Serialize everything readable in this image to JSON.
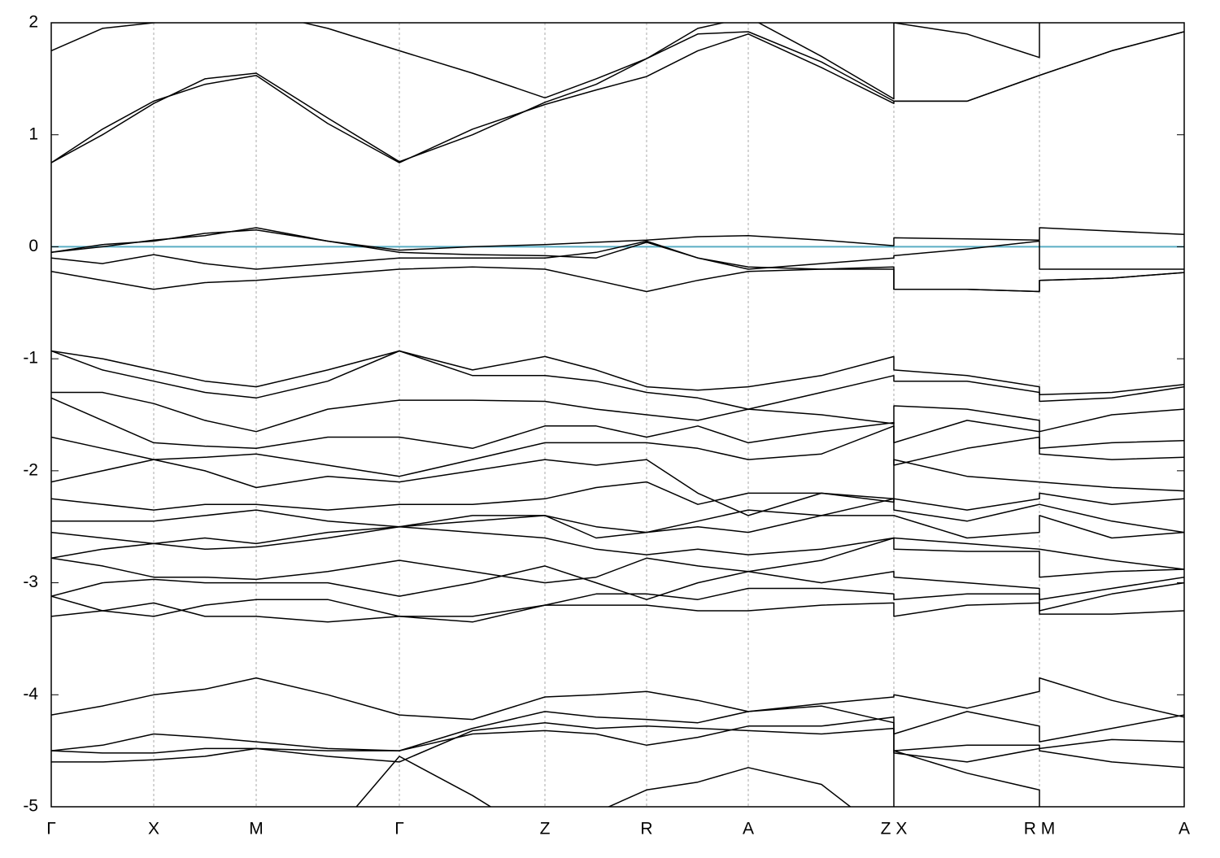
{
  "chart_data": {
    "type": "line",
    "x": [
      0,
      0.63,
      1.26,
      1.89,
      2.52,
      3.4,
      4.28,
      5.18,
      6.07,
      6.7,
      7.32,
      7.95,
      8.57,
      9.47,
      10.36,
      10.36,
      11.26,
      12.15,
      12.15,
      13.04,
      13.93
    ],
    "xlim": [
      0,
      13.93
    ],
    "xticks": [
      {
        "value": 0,
        "label": "Γ"
      },
      {
        "value": 1.26,
        "label": "X"
      },
      {
        "value": 2.52,
        "label": "M"
      },
      {
        "value": 4.28,
        "label": "Γ"
      },
      {
        "value": 6.07,
        "label": "Z"
      },
      {
        "value": 7.32,
        "label": "R"
      },
      {
        "value": 8.57,
        "label": "A"
      },
      {
        "value": 10.36,
        "label": "Z X"
      },
      {
        "value": 12.15,
        "label": "R M"
      },
      {
        "value": 13.93,
        "label": "A"
      }
    ],
    "ylim": [
      -5,
      2
    ],
    "yticks": [
      -5,
      -4,
      -3,
      -2,
      -1,
      0,
      1,
      2
    ],
    "grid": true,
    "color": "#000000",
    "fermi_level": 0,
    "fermi_color": "#5aaec4",
    "series": [
      {
        "values": [
          0.75,
          1.05,
          1.3,
          1.45,
          1.53,
          1.1,
          0.75,
          1.05,
          1.27,
          1.4,
          1.52,
          1.75,
          1.9,
          1.6,
          1.28,
          1.3,
          1.3,
          1.53,
          1.53,
          1.75,
          1.92
        ]
      },
      {
        "values": [
          1.75,
          1.95,
          2.0,
          2.05,
          2.1,
          1.95,
          1.75,
          1.55,
          1.33,
          1.5,
          1.68,
          1.95,
          2.05,
          1.7,
          1.32,
          2.0,
          1.9,
          1.69,
          2.1,
          2.1,
          2.1
        ]
      },
      {
        "values": [
          0.75,
          1.0,
          1.28,
          1.5,
          1.55,
          1.15,
          0.76,
          1.0,
          1.29,
          1.45,
          1.68,
          1.9,
          1.92,
          1.65,
          1.3,
          1.3,
          1.3,
          1.53,
          1.53,
          1.75,
          1.92
        ]
      },
      {
        "values": [
          -0.05,
          0.0,
          0.06,
          0.1,
          0.17,
          0.05,
          -0.03,
          0.0,
          0.02,
          0.04,
          0.06,
          0.09,
          0.1,
          0.06,
          0.01,
          0.08,
          0.07,
          0.06,
          0.17,
          0.14,
          0.11
        ]
      },
      {
        "values": [
          -0.1,
          -0.15,
          -0.07,
          -0.15,
          -0.2,
          -0.15,
          -0.1,
          -0.1,
          -0.1,
          -0.05,
          0.05,
          -0.1,
          -0.2,
          -0.15,
          -0.1,
          -0.08,
          -0.02,
          0.05,
          -0.2,
          -0.2,
          -0.2
        ]
      },
      {
        "values": [
          -0.22,
          -0.3,
          -0.38,
          -0.32,
          -0.3,
          -0.25,
          -0.2,
          -0.18,
          -0.2,
          -0.3,
          -0.4,
          -0.3,
          -0.22,
          -0.2,
          -0.18,
          -0.38,
          -0.38,
          -0.4,
          -0.3,
          -0.28,
          -0.23
        ]
      },
      {
        "values": [
          -0.05,
          0.02,
          0.05,
          0.12,
          0.15,
          0.05,
          -0.05,
          -0.07,
          -0.08,
          -0.1,
          0.04,
          -0.1,
          -0.18,
          -0.2,
          -0.2,
          -0.38,
          -0.38,
          -0.4,
          -0.3,
          -0.28,
          -0.23
        ]
      },
      {
        "values": [
          -0.93,
          -1.0,
          -1.1,
          -1.2,
          -1.25,
          -1.1,
          -0.93,
          -1.1,
          -0.98,
          -1.1,
          -1.25,
          -1.28,
          -1.25,
          -1.15,
          -0.98,
          -1.1,
          -1.15,
          -1.25,
          -1.32,
          -1.3,
          -1.23
        ]
      },
      {
        "values": [
          -0.93,
          -1.1,
          -1.2,
          -1.3,
          -1.35,
          -1.2,
          -0.93,
          -1.15,
          -1.15,
          -1.2,
          -1.3,
          -1.35,
          -1.45,
          -1.3,
          -1.15,
          -1.2,
          -1.2,
          -1.3,
          -1.38,
          -1.35,
          -1.25
        ]
      },
      {
        "values": [
          -1.3,
          -1.3,
          -1.4,
          -1.55,
          -1.65,
          -1.45,
          -1.37,
          -1.37,
          -1.38,
          -1.45,
          -1.5,
          -1.55,
          -1.45,
          -1.5,
          -1.58,
          -1.42,
          -1.45,
          -1.55,
          -1.65,
          -1.5,
          -1.45
        ]
      },
      {
        "values": [
          -1.35,
          -1.55,
          -1.75,
          -1.78,
          -1.8,
          -1.7,
          -1.7,
          -1.8,
          -1.6,
          -1.6,
          -1.7,
          -1.6,
          -1.75,
          -1.65,
          -1.57,
          -1.75,
          -1.55,
          -1.65,
          -1.8,
          -1.75,
          -1.73
        ]
      },
      {
        "values": [
          -1.7,
          -1.8,
          -1.9,
          -1.88,
          -1.85,
          -1.95,
          -2.05,
          -1.9,
          -1.75,
          -1.75,
          -1.75,
          -1.8,
          -1.9,
          -1.85,
          -1.6,
          -1.95,
          -1.8,
          -1.7,
          -1.85,
          -1.9,
          -1.88
        ]
      },
      {
        "values": [
          -2.1,
          -2.0,
          -1.9,
          -2.0,
          -2.15,
          -2.05,
          -2.1,
          -2.0,
          -1.9,
          -1.95,
          -1.9,
          -2.2,
          -2.4,
          -2.2,
          -2.25,
          -1.9,
          -2.05,
          -2.1,
          -2.1,
          -2.15,
          -2.18
        ]
      },
      {
        "values": [
          -2.25,
          -2.3,
          -2.35,
          -2.3,
          -2.3,
          -2.35,
          -2.3,
          -2.3,
          -2.25,
          -2.15,
          -2.1,
          -2.3,
          -2.2,
          -2.2,
          -2.28,
          -2.25,
          -2.35,
          -2.25,
          -2.2,
          -2.3,
          -2.25
        ]
      },
      {
        "values": [
          -2.45,
          -2.45,
          -2.45,
          -2.4,
          -2.35,
          -2.45,
          -2.5,
          -2.4,
          -2.4,
          -2.6,
          -2.55,
          -2.5,
          -2.55,
          -2.4,
          -2.25,
          -2.35,
          -2.45,
          -2.3,
          -2.3,
          -2.45,
          -2.55
        ]
      },
      {
        "values": [
          -2.55,
          -2.6,
          -2.65,
          -2.6,
          -2.65,
          -2.55,
          -2.5,
          -2.45,
          -2.4,
          -2.5,
          -2.55,
          -2.45,
          -2.35,
          -2.4,
          -2.4,
          -2.4,
          -2.6,
          -2.55,
          -2.4,
          -2.6,
          -2.55
        ]
      },
      {
        "values": [
          -2.78,
          -2.7,
          -2.65,
          -2.7,
          -2.68,
          -2.6,
          -2.5,
          -2.55,
          -2.6,
          -2.7,
          -2.75,
          -2.7,
          -2.75,
          -2.7,
          -2.6,
          -2.6,
          -2.65,
          -2.7,
          -2.7,
          -2.8,
          -2.88
        ]
      },
      {
        "values": [
          -2.78,
          -2.85,
          -2.95,
          -2.95,
          -2.97,
          -2.9,
          -2.8,
          -2.9,
          -3.0,
          -2.95,
          -2.78,
          -2.85,
          -2.9,
          -2.8,
          -2.6,
          -2.7,
          -2.72,
          -2.72,
          -2.95,
          -2.9,
          -2.88
        ]
      },
      {
        "values": [
          -3.12,
          -3.0,
          -2.97,
          -3.0,
          -3.0,
          -3.0,
          -3.12,
          -3.0,
          -2.85,
          -3.0,
          -3.15,
          -3.0,
          -2.9,
          -3.0,
          -2.9,
          -2.95,
          -3.0,
          -3.05,
          -3.15,
          -3.05,
          -2.95
        ]
      },
      {
        "values": [
          -3.12,
          -3.25,
          -3.3,
          -3.2,
          -3.15,
          -3.15,
          -3.3,
          -3.35,
          -3.2,
          -3.1,
          -3.1,
          -3.15,
          -3.05,
          -3.05,
          -3.1,
          -3.15,
          -3.1,
          -3.1,
          -3.25,
          -3.1,
          -3.0
        ]
      },
      {
        "values": [
          -3.3,
          -3.25,
          -3.18,
          -3.3,
          -3.3,
          -3.35,
          -3.3,
          -3.3,
          -3.2,
          -3.2,
          -3.2,
          -3.25,
          -3.25,
          -3.2,
          -3.18,
          -3.3,
          -3.2,
          -3.18,
          -3.28,
          -3.28,
          -3.25
        ]
      },
      {
        "values": [
          -4.18,
          -4.1,
          -4.0,
          -3.95,
          -3.85,
          -4.0,
          -4.18,
          -4.22,
          -4.02,
          -4.0,
          -3.97,
          -4.05,
          -4.15,
          -4.08,
          -4.02,
          -4.0,
          -4.12,
          -3.97,
          -3.85,
          -4.05,
          -4.2
        ]
      },
      {
        "values": [
          -4.5,
          -4.45,
          -4.35,
          -4.38,
          -4.42,
          -4.48,
          -4.5,
          -4.3,
          -4.15,
          -4.2,
          -4.22,
          -4.25,
          -4.15,
          -4.1,
          -4.25,
          -4.35,
          -4.15,
          -4.28,
          -4.42,
          -4.3,
          -4.18
        ]
      },
      {
        "values": [
          -4.5,
          -4.52,
          -4.52,
          -4.48,
          -4.48,
          -4.5,
          -4.5,
          -4.35,
          -4.32,
          -4.35,
          -4.45,
          -4.38,
          -4.28,
          -4.28,
          -4.2,
          -4.5,
          -4.45,
          -4.45,
          -4.48,
          -4.4,
          -4.42
        ]
      },
      {
        "values": [
          -4.6,
          -4.6,
          -4.58,
          -4.55,
          -4.48,
          -4.55,
          -4.6,
          -4.32,
          -4.25,
          -4.3,
          -4.28,
          -4.3,
          -4.32,
          -4.35,
          -4.3,
          -4.52,
          -4.6,
          -4.48,
          -4.5,
          -4.6,
          -4.65
        ]
      },
      {
        "values": [
          -5.3,
          -5.3,
          -5.3,
          -5.3,
          -5.3,
          -5.3,
          -4.55,
          -4.9,
          -5.3,
          -5.05,
          -4.85,
          -4.78,
          -4.65,
          -4.8,
          -5.3,
          -4.5,
          -4.7,
          -4.85,
          -5.3,
          -5.3,
          -5.3
        ]
      }
    ]
  }
}
